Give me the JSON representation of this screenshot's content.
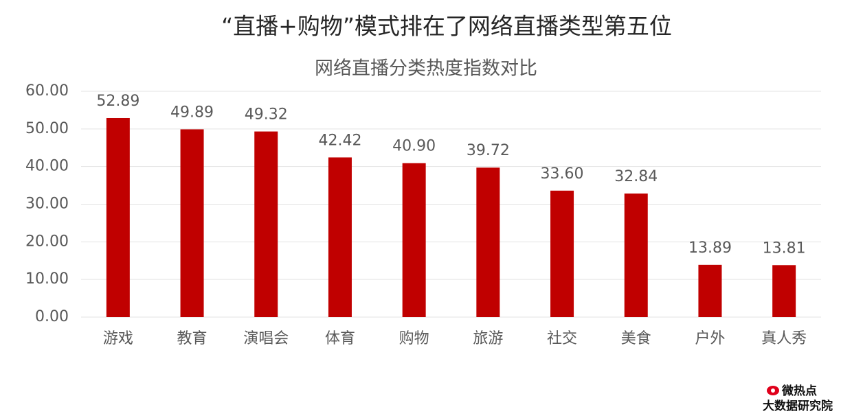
{
  "chart_data": {
    "type": "bar",
    "title": "“直播+购物”模式排在了网络直播类型第五位",
    "subtitle": "网络直播分类热度指数对比",
    "categories": [
      "游戏",
      "教育",
      "演唱会",
      "体育",
      "购物",
      "旅游",
      "社交",
      "美食",
      "户外",
      "真人秀"
    ],
    "values": [
      52.89,
      49.89,
      49.32,
      42.42,
      40.9,
      39.72,
      33.6,
      32.84,
      13.89,
      13.81
    ],
    "value_labels": [
      "52.89",
      "49.89",
      "49.32",
      "42.42",
      "40.90",
      "39.72",
      "33.60",
      "32.84",
      "13.89",
      "13.81"
    ],
    "color": "#c00000",
    "ylim": [
      0,
      60
    ],
    "yticks": [
      {
        "value": 0,
        "label": "0.00"
      },
      {
        "value": 10,
        "label": "10.00"
      },
      {
        "value": 20,
        "label": "20.00"
      },
      {
        "value": 30,
        "label": "30.00"
      },
      {
        "value": 40,
        "label": "40.00"
      },
      {
        "value": 50,
        "label": "50.00"
      },
      {
        "value": 60,
        "label": "60.00"
      }
    ],
    "grid": true
  },
  "logo": {
    "name": "微热点",
    "org": "大数据研究院"
  }
}
